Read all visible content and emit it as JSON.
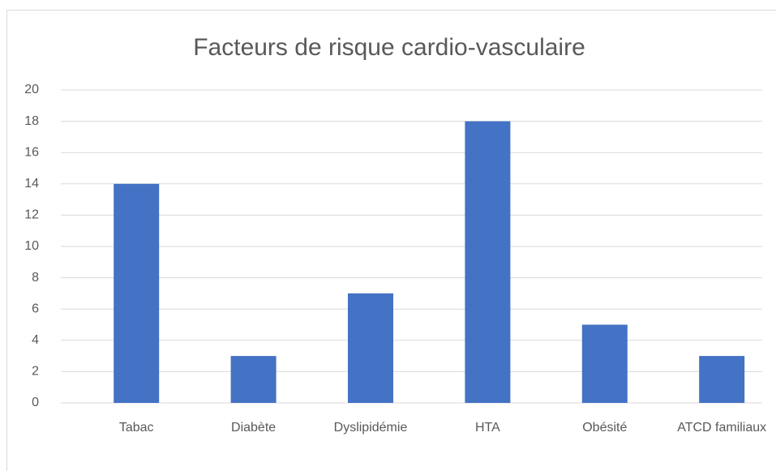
{
  "chart_data": {
    "type": "bar",
    "title": "Facteurs de risque cardio-vasculaire",
    "categories": [
      "Tabac",
      "Diabète",
      "Dyslipidémie",
      "HTA",
      "Obésité",
      "ATCD familiaux"
    ],
    "values": [
      14,
      3,
      7,
      18,
      5,
      3
    ],
    "color": "#4472c4",
    "ylim": [
      0,
      20
    ],
    "yticks": [
      0,
      2,
      4,
      6,
      8,
      10,
      12,
      14,
      16,
      18,
      20
    ],
    "grid": true
  }
}
